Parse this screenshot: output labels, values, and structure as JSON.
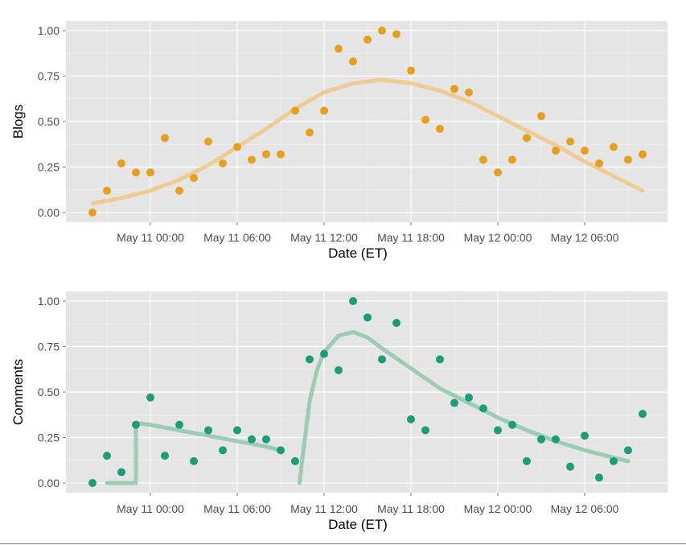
{
  "colors": {
    "panel_bg": "#e5e5e5",
    "grid_major": "#ffffff",
    "grid_minor": "#f2f2f2",
    "tick_text": "#4d4d4d",
    "blogs_point": "#e69f1f",
    "blogs_smooth": "#f0c98a",
    "comments_point": "#1b9e77",
    "comments_smooth": "#93c9ae"
  },
  "chart_data": [
    {
      "type": "scatter",
      "xlabel": "Date (ET)",
      "ylabel": "Blogs",
      "ylim": [
        0,
        1
      ],
      "yticks": [
        "0.00",
        "0.25",
        "0.50",
        "0.75",
        "1.00"
      ],
      "xticks": [
        "May 11 00:00",
        "May 11 06:00",
        "May 11 12:00",
        "May 11 18:00",
        "May 12 00:00",
        "May 12 06:00"
      ],
      "x_unit": "hours relative to May 11 00:00",
      "grid": true,
      "series": [
        {
          "points": [
            {
              "x": -4,
              "y": 0.0
            },
            {
              "x": -3,
              "y": 0.12
            },
            {
              "x": -2,
              "y": 0.27
            },
            {
              "x": -1,
              "y": 0.22
            },
            {
              "x": 0,
              "y": 0.22
            },
            {
              "x": 1,
              "y": 0.41
            },
            {
              "x": 2,
              "y": 0.12
            },
            {
              "x": 3,
              "y": 0.19
            },
            {
              "x": 4,
              "y": 0.39
            },
            {
              "x": 5,
              "y": 0.27
            },
            {
              "x": 6,
              "y": 0.36
            },
            {
              "x": 7,
              "y": 0.29
            },
            {
              "x": 8,
              "y": 0.32
            },
            {
              "x": 9,
              "y": 0.32
            },
            {
              "x": 10,
              "y": 0.56
            },
            {
              "x": 11,
              "y": 0.44
            },
            {
              "x": 12,
              "y": 0.56
            },
            {
              "x": 13,
              "y": 0.9
            },
            {
              "x": 14,
              "y": 0.83
            },
            {
              "x": 15,
              "y": 0.95
            },
            {
              "x": 16,
              "y": 1.0
            },
            {
              "x": 17,
              "y": 0.98
            },
            {
              "x": 18,
              "y": 0.78
            },
            {
              "x": 19,
              "y": 0.51
            },
            {
              "x": 20,
              "y": 0.46
            },
            {
              "x": 21,
              "y": 0.68
            },
            {
              "x": 22,
              "y": 0.66
            },
            {
              "x": 23,
              "y": 0.29
            },
            {
              "x": 24,
              "y": 0.22
            },
            {
              "x": 25,
              "y": 0.29
            },
            {
              "x": 26,
              "y": 0.41
            },
            {
              "x": 27,
              "y": 0.53
            },
            {
              "x": 28,
              "y": 0.34
            },
            {
              "x": 29,
              "y": 0.39
            },
            {
              "x": 30,
              "y": 0.34
            },
            {
              "x": 31,
              "y": 0.27
            },
            {
              "x": 32,
              "y": 0.36
            },
            {
              "x": 33,
              "y": 0.29
            },
            {
              "x": 34,
              "y": 0.32
            }
          ],
          "smooth": [
            {
              "x": -4,
              "y": 0.05
            },
            {
              "x": -2,
              "y": 0.08
            },
            {
              "x": 0,
              "y": 0.12
            },
            {
              "x": 2,
              "y": 0.18
            },
            {
              "x": 4,
              "y": 0.26
            },
            {
              "x": 6,
              "y": 0.36
            },
            {
              "x": 8,
              "y": 0.46
            },
            {
              "x": 10,
              "y": 0.57
            },
            {
              "x": 12,
              "y": 0.66
            },
            {
              "x": 14,
              "y": 0.71
            },
            {
              "x": 16,
              "y": 0.73
            },
            {
              "x": 18,
              "y": 0.71
            },
            {
              "x": 20,
              "y": 0.67
            },
            {
              "x": 22,
              "y": 0.61
            },
            {
              "x": 24,
              "y": 0.53
            },
            {
              "x": 26,
              "y": 0.45
            },
            {
              "x": 28,
              "y": 0.37
            },
            {
              "x": 30,
              "y": 0.28
            },
            {
              "x": 32,
              "y": 0.2
            },
            {
              "x": 34,
              "y": 0.12
            }
          ]
        }
      ]
    },
    {
      "type": "scatter",
      "xlabel": "Date (ET)",
      "ylabel": "Comments",
      "ylim": [
        0,
        1
      ],
      "yticks": [
        "0.00",
        "0.25",
        "0.50",
        "0.75",
        "1.00"
      ],
      "xticks": [
        "May 11 00:00",
        "May 11 06:00",
        "May 11 12:00",
        "May 11 18:00",
        "May 12 00:00",
        "May 12 06:00"
      ],
      "x_unit": "hours relative to May 11 00:00",
      "grid": true,
      "series": [
        {
          "points": [
            {
              "x": -4,
              "y": 0.0
            },
            {
              "x": -3,
              "y": 0.15
            },
            {
              "x": -2,
              "y": 0.06
            },
            {
              "x": -1,
              "y": 0.32
            },
            {
              "x": 0,
              "y": 0.47
            },
            {
              "x": 1,
              "y": 0.15
            },
            {
              "x": 2,
              "y": 0.32
            },
            {
              "x": 3,
              "y": 0.12
            },
            {
              "x": 4,
              "y": 0.29
            },
            {
              "x": 5,
              "y": 0.18
            },
            {
              "x": 6,
              "y": 0.29
            },
            {
              "x": 7,
              "y": 0.24
            },
            {
              "x": 8,
              "y": 0.24
            },
            {
              "x": 9,
              "y": 0.18
            },
            {
              "x": 10,
              "y": 0.12
            },
            {
              "x": 11,
              "y": 0.68
            },
            {
              "x": 12,
              "y": 0.71
            },
            {
              "x": 13,
              "y": 0.62
            },
            {
              "x": 14,
              "y": 1.0
            },
            {
              "x": 15,
              "y": 0.91
            },
            {
              "x": 16,
              "y": 0.68
            },
            {
              "x": 17,
              "y": 0.88
            },
            {
              "x": 18,
              "y": 0.35
            },
            {
              "x": 19,
              "y": 0.29
            },
            {
              "x": 20,
              "y": 0.68
            },
            {
              "x": 21,
              "y": 0.44
            },
            {
              "x": 22,
              "y": 0.47
            },
            {
              "x": 23,
              "y": 0.41
            },
            {
              "x": 24,
              "y": 0.29
            },
            {
              "x": 25,
              "y": 0.32
            },
            {
              "x": 26,
              "y": 0.12
            },
            {
              "x": 27,
              "y": 0.24
            },
            {
              "x": 28,
              "y": 0.24
            },
            {
              "x": 29,
              "y": 0.09
            },
            {
              "x": 30,
              "y": 0.26
            },
            {
              "x": 31,
              "y": 0.03
            },
            {
              "x": 32,
              "y": 0.12
            },
            {
              "x": 33,
              "y": 0.18
            },
            {
              "x": 34,
              "y": 0.38
            }
          ],
          "smooth_segments": [
            [
              {
                "x": -3,
                "y": 0.0
              },
              {
                "x": -1,
                "y": 0.0
              },
              {
                "x": -1,
                "y": 0.33
              },
              {
                "x": 0,
                "y": 0.32
              },
              {
                "x": 2,
                "y": 0.29
              },
              {
                "x": 4,
                "y": 0.26
              },
              {
                "x": 6,
                "y": 0.23
              },
              {
                "x": 8,
                "y": 0.2
              },
              {
                "x": 9,
                "y": 0.18
              }
            ],
            [
              {
                "x": 10.3,
                "y": 0.0
              },
              {
                "x": 10.6,
                "y": 0.2
              },
              {
                "x": 11,
                "y": 0.45
              },
              {
                "x": 11.5,
                "y": 0.62
              },
              {
                "x": 12,
                "y": 0.72
              },
              {
                "x": 13,
                "y": 0.81
              },
              {
                "x": 14,
                "y": 0.83
              },
              {
                "x": 15,
                "y": 0.8
              },
              {
                "x": 16,
                "y": 0.74
              },
              {
                "x": 18,
                "y": 0.63
              },
              {
                "x": 20,
                "y": 0.52
              },
              {
                "x": 22,
                "y": 0.44
              },
              {
                "x": 24,
                "y": 0.36
              },
              {
                "x": 26,
                "y": 0.29
              },
              {
                "x": 28,
                "y": 0.23
              },
              {
                "x": 30,
                "y": 0.18
              },
              {
                "x": 32,
                "y": 0.14
              },
              {
                "x": 33,
                "y": 0.12
              }
            ]
          ]
        }
      ]
    }
  ]
}
